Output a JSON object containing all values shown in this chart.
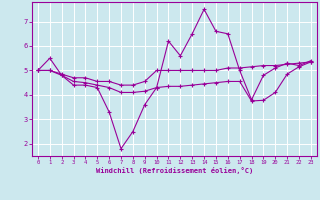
{
  "title": "",
  "xlabel": "Windchill (Refroidissement éolien,°C)",
  "bg_color": "#cce8ee",
  "line_color": "#990099",
  "grid_color": "#ffffff",
  "xlim": [
    -0.5,
    23.5
  ],
  "ylim": [
    1.5,
    7.8
  ],
  "yticks": [
    2,
    3,
    4,
    5,
    6,
    7
  ],
  "xticks": [
    0,
    1,
    2,
    3,
    4,
    5,
    6,
    7,
    8,
    9,
    10,
    11,
    12,
    13,
    14,
    15,
    16,
    17,
    18,
    19,
    20,
    21,
    22,
    23
  ],
  "line1_x": [
    0,
    1,
    2,
    3,
    4,
    5,
    6,
    7,
    8,
    9,
    10,
    11,
    12,
    13,
    14,
    15,
    16,
    17,
    18,
    19,
    20,
    21,
    22,
    23
  ],
  "line1_y": [
    5.0,
    5.5,
    4.8,
    4.4,
    4.4,
    4.3,
    3.3,
    1.8,
    2.5,
    3.6,
    4.3,
    6.2,
    5.6,
    6.5,
    7.5,
    6.6,
    6.5,
    5.0,
    3.8,
    4.8,
    5.1,
    5.3,
    5.2,
    5.4
  ],
  "line2_x": [
    0,
    1,
    2,
    3,
    4,
    5,
    6,
    7,
    8,
    9,
    10,
    11,
    12,
    13,
    14,
    15,
    16,
    17,
    18,
    19,
    20,
    21,
    22,
    23
  ],
  "line2_y": [
    5.0,
    5.0,
    4.85,
    4.7,
    4.7,
    4.55,
    4.55,
    4.4,
    4.4,
    4.55,
    5.0,
    5.0,
    5.0,
    5.0,
    5.0,
    5.0,
    5.1,
    5.1,
    5.15,
    5.2,
    5.2,
    5.25,
    5.3,
    5.35
  ],
  "line3_x": [
    0,
    1,
    2,
    3,
    4,
    5,
    6,
    7,
    8,
    9,
    10,
    11,
    12,
    13,
    14,
    15,
    16,
    17,
    18,
    19,
    20,
    21,
    22,
    23
  ],
  "line3_y": [
    5.0,
    5.0,
    4.8,
    4.55,
    4.5,
    4.4,
    4.3,
    4.1,
    4.1,
    4.15,
    4.3,
    4.35,
    4.35,
    4.4,
    4.45,
    4.5,
    4.55,
    4.55,
    3.75,
    3.78,
    4.1,
    4.85,
    5.15,
    5.35
  ],
  "marker": "+",
  "markersize": 3,
  "linewidth": 0.8
}
